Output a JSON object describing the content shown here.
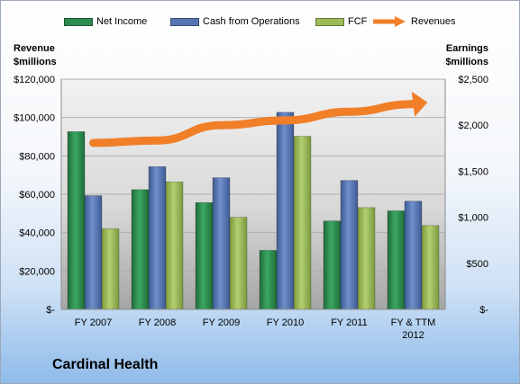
{
  "company": "Cardinal Health",
  "colors": {
    "net_income": "#2e8b4f",
    "cash_from_operations": "#5575b0",
    "fcf": "#9bbb59",
    "revenues": "#f07f28"
  },
  "chart_data": {
    "type": "bar",
    "categories": [
      "FY 2007",
      "FY 2008",
      "FY 2009",
      "FY 2010",
      "FY 2011",
      "FY & TTM\n2012"
    ],
    "left_axis": {
      "title": [
        "Revenue",
        "$millions"
      ],
      "ylim": [
        0,
        120000
      ],
      "ticks": [
        "$-",
        "$20,000",
        "$40,000",
        "$60,000",
        "$80,000",
        "$100,000",
        "$120,000"
      ]
    },
    "right_axis": {
      "title": [
        "Earnings",
        "$millions"
      ],
      "ylim": [
        0,
        2500
      ],
      "ticks": [
        "$-",
        "$500",
        "$1,000",
        "$1,500",
        "$2,000",
        "$2,500"
      ]
    },
    "series": [
      {
        "name": "Net Income",
        "key": "net_income",
        "axis": "right",
        "type": "bar",
        "values": [
          1930,
          1300,
          1160,
          640,
          960,
          1070
        ]
      },
      {
        "name": "Cash from Operations",
        "key": "cash_from_operations",
        "axis": "right",
        "type": "bar",
        "values": [
          1235,
          1550,
          1430,
          2140,
          1400,
          1175
        ]
      },
      {
        "name": "FCF",
        "key": "fcf",
        "axis": "right",
        "type": "bar",
        "values": [
          875,
          1385,
          1000,
          1880,
          1105,
          910
        ]
      },
      {
        "name": "Revenues",
        "key": "revenues",
        "axis": "left",
        "type": "line",
        "values": [
          86800,
          88000,
          96000,
          98500,
          103000,
          107000
        ]
      }
    ],
    "grid": true,
    "legend": "top"
  }
}
